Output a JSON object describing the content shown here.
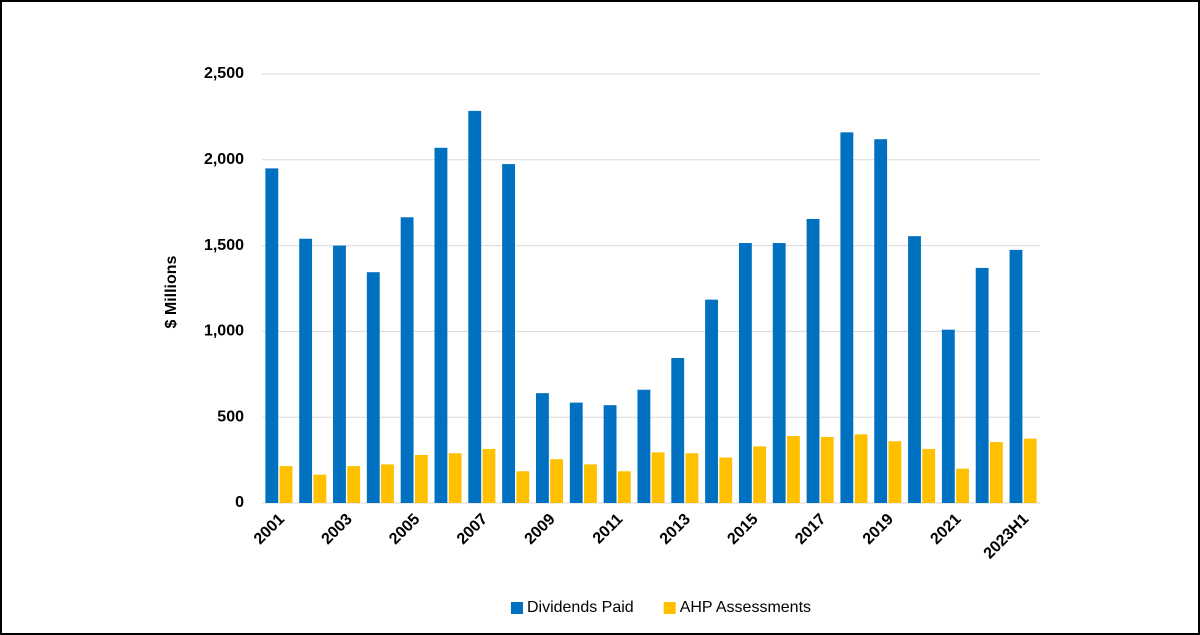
{
  "chart_data": {
    "type": "bar",
    "y_label": "$ Millions",
    "categories": [
      "2001",
      null,
      "2003",
      null,
      "2005",
      null,
      "2007",
      null,
      "2009",
      null,
      "2011",
      null,
      "2013",
      null,
      "2015",
      null,
      "2017",
      null,
      "2019",
      null,
      "2021",
      null,
      "2023H1"
    ],
    "series": [
      {
        "name": "Dividends Paid",
        "color": "#0070c0",
        "values": [
          1950,
          1540,
          1500,
          1345,
          1665,
          2070,
          2285,
          1975,
          640,
          585,
          570,
          660,
          845,
          1185,
          1515,
          1515,
          1655,
          2160,
          2120,
          1555,
          1010,
          1370,
          1475
        ]
      },
      {
        "name": "AHP Assessments",
        "color": "#ffc000",
        "values": [
          215,
          165,
          215,
          225,
          280,
          290,
          315,
          185,
          255,
          225,
          185,
          295,
          290,
          265,
          330,
          390,
          385,
          400,
          360,
          315,
          200,
          355,
          375
        ]
      }
    ],
    "ylim": [
      0,
      2500
    ],
    "yticks": [
      0,
      500,
      {
        "value": 1000,
        "label": "1,000"
      },
      {
        "value": 1500,
        "label": "1,500"
      },
      {
        "value": 2000,
        "label": "2,000"
      },
      {
        "value": 2500,
        "label": "2,500"
      }
    ],
    "grid": true,
    "legend": "bottom"
  }
}
